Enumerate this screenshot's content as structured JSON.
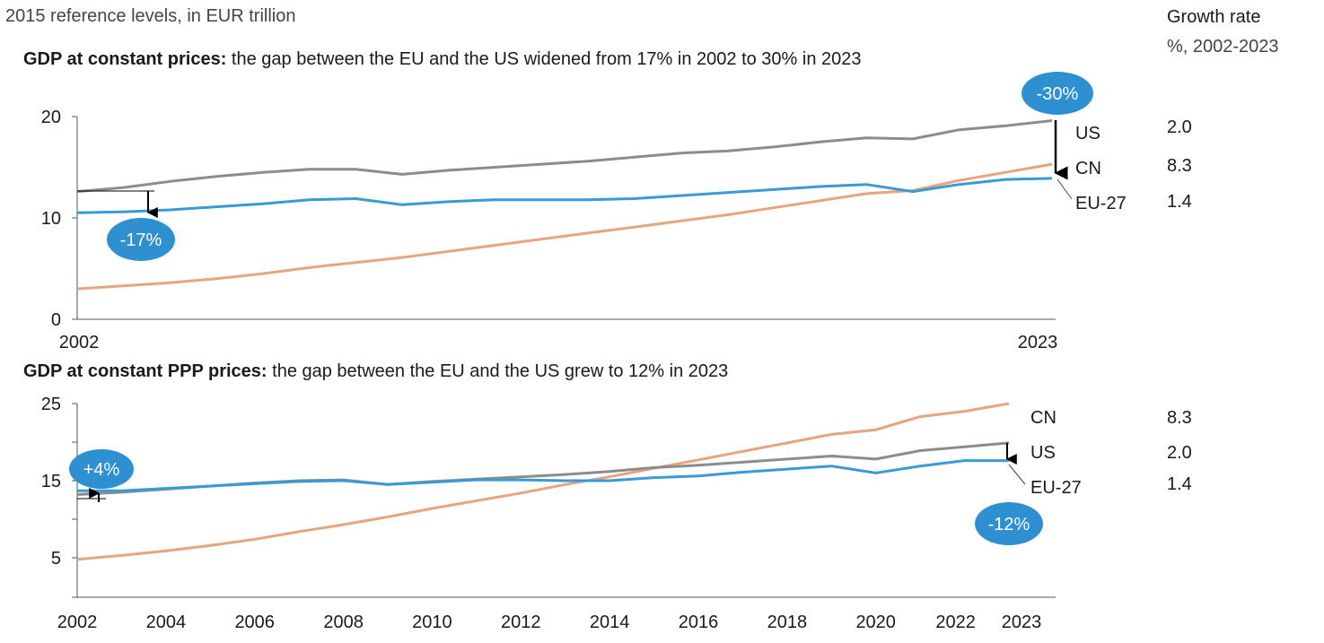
{
  "header": {
    "units_note": "2015 reference levels, in EUR trillion",
    "growth_title": "Growth rate",
    "growth_subtitle": "%, 2002-2023"
  },
  "colors": {
    "US": "#8c8c8c",
    "CN": "#e8a47c",
    "EU-27": "#3a9ad6",
    "badge": "#2e8fd1",
    "axis": "#555555"
  },
  "chart_data": [
    {
      "type": "line",
      "title_bold": "GDP at constant prices:",
      "title_rest": " the gap between the EU and the US widened from 17% in 2002 to 30% in 2023",
      "x": [
        2002,
        2003,
        2004,
        2005,
        2006,
        2007,
        2008,
        2009,
        2010,
        2011,
        2012,
        2013,
        2014,
        2015,
        2016,
        2017,
        2018,
        2019,
        2020,
        2021,
        2022,
        2023
      ],
      "x_tick_labels": [
        "2002",
        "2023"
      ],
      "ylim": [
        0,
        20
      ],
      "y_ticks": [
        "0",
        "10",
        "20"
      ],
      "series": [
        {
          "name": "US",
          "growth": "2.0",
          "values": [
            12.6,
            13.0,
            13.6,
            14.1,
            14.5,
            14.8,
            14.8,
            14.3,
            14.7,
            15.0,
            15.3,
            15.6,
            16.0,
            16.4,
            16.6,
            17.0,
            17.5,
            17.9,
            17.8,
            18.7,
            19.1,
            19.6
          ]
        },
        {
          "name": "CN",
          "growth": "8.3",
          "values": [
            3.0,
            3.3,
            3.6,
            4.0,
            4.5,
            5.1,
            5.6,
            6.1,
            6.7,
            7.3,
            7.9,
            8.5,
            9.1,
            9.7,
            10.3,
            11.0,
            11.7,
            12.4,
            12.7,
            13.7,
            14.5,
            15.3
          ]
        },
        {
          "name": "EU-27",
          "growth": "1.4",
          "values": [
            10.5,
            10.6,
            10.8,
            11.1,
            11.4,
            11.8,
            11.9,
            11.3,
            11.6,
            11.8,
            11.8,
            11.8,
            11.9,
            12.2,
            12.5,
            12.8,
            13.1,
            13.3,
            12.6,
            13.3,
            13.8,
            13.9
          ]
        }
      ],
      "annotations": [
        "-17%",
        "-30%"
      ]
    },
    {
      "type": "line",
      "title_bold": "GDP at constant PPP prices:",
      "title_rest": " the gap between the EU and the US grew to 12% in 2023",
      "x": [
        2002,
        2003,
        2004,
        2005,
        2006,
        2007,
        2008,
        2009,
        2010,
        2011,
        2012,
        2013,
        2014,
        2015,
        2016,
        2017,
        2018,
        2019,
        2020,
        2021,
        2022,
        2023
      ],
      "x_tick_labels": [
        "2002",
        "2004",
        "2006",
        "2008",
        "2010",
        "2012",
        "2014",
        "2016",
        "2018",
        "2020",
        "2022",
        "2023"
      ],
      "ylim": [
        0,
        25
      ],
      "y_ticks": [
        "5",
        "15",
        "25"
      ],
      "series": [
        {
          "name": "CN",
          "growth": "8.3",
          "values": [
            4.8,
            5.3,
            5.9,
            6.6,
            7.4,
            8.4,
            9.3,
            10.3,
            11.4,
            12.4,
            13.4,
            14.5,
            15.5,
            16.6,
            17.7,
            18.8,
            19.9,
            21.0,
            21.6,
            23.3,
            24.0,
            25.0
          ]
        },
        {
          "name": "US",
          "growth": "2.0",
          "values": [
            13.2,
            13.5,
            13.9,
            14.3,
            14.7,
            15.0,
            15.1,
            14.5,
            14.9,
            15.2,
            15.5,
            15.8,
            16.2,
            16.7,
            17.0,
            17.4,
            17.8,
            18.2,
            17.8,
            18.9,
            19.4,
            19.9
          ]
        },
        {
          "name": "EU-27",
          "growth": "1.4",
          "values": [
            13.7,
            13.7,
            14.0,
            14.3,
            14.6,
            14.9,
            15.0,
            14.5,
            14.8,
            15.1,
            15.1,
            15.0,
            15.0,
            15.4,
            15.6,
            16.1,
            16.5,
            16.9,
            16.0,
            16.9,
            17.6,
            17.6
          ]
        }
      ],
      "annotations": [
        "+4%",
        "-12%"
      ]
    }
  ]
}
